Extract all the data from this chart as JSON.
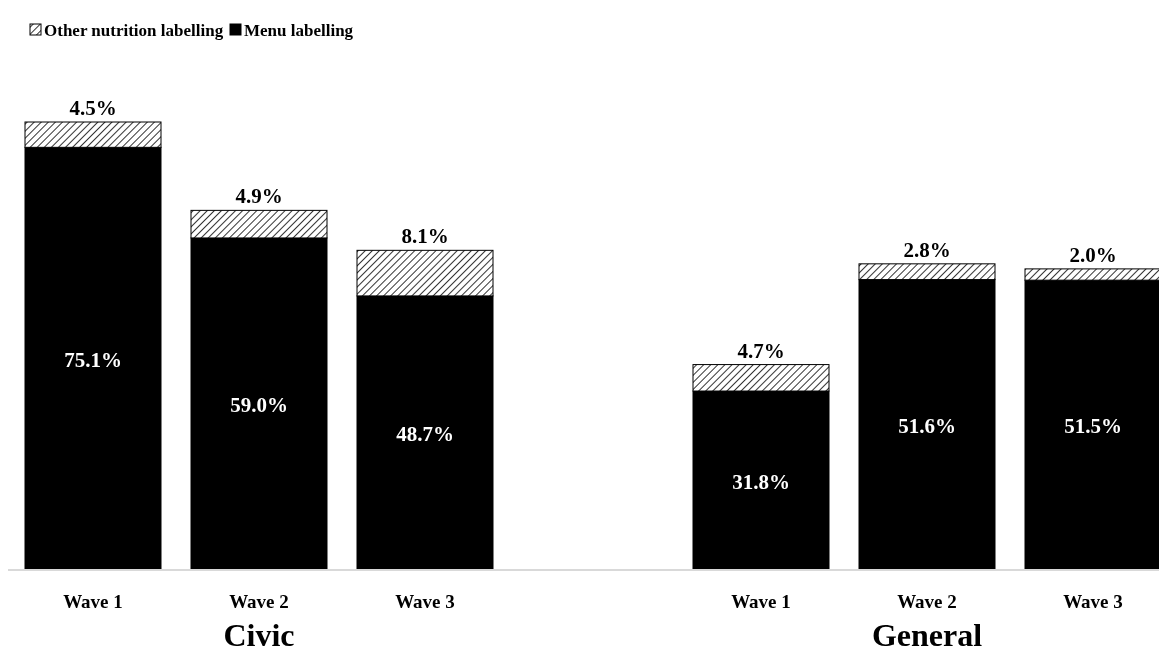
{
  "chart_data": [
    {
      "type": "bar",
      "stacked": true,
      "xlabel": "Civic",
      "categories": [
        "Wave 1",
        "Wave 2",
        "Wave 3"
      ],
      "legend": "top left",
      "series": [
        {
          "name": "Menu labelling",
          "color": "#000000",
          "values": [
            75.1,
            59.0,
            48.7
          ],
          "value_labels": [
            "75.1%",
            "59.0%",
            "48.7%"
          ]
        },
        {
          "name": "Other nutrition labelling",
          "color": "#000000",
          "values": [
            4.5,
            4.9,
            8.1
          ],
          "value_labels": [
            "4.5%",
            "4.9%",
            "8.1%"
          ]
        }
      ]
    },
    {
      "type": "bar",
      "stacked": true,
      "xlabel": "General",
      "categories": [
        "Wave 1",
        "Wave 2",
        "Wave 3"
      ],
      "series": [
        {
          "color": "#000000",
          "values": [
            31.8,
            51.6,
            51.5
          ],
          "value_labels": [
            "31.8%",
            "51.6%",
            "51.5%"
          ]
        },
        {
          "color": "#000000",
          "values": [
            4.7,
            2.8,
            2.0
          ],
          "value_labels": [
            "4.7%",
            "2.8%",
            "2.0%"
          ]
        }
      ]
    }
  ]
}
